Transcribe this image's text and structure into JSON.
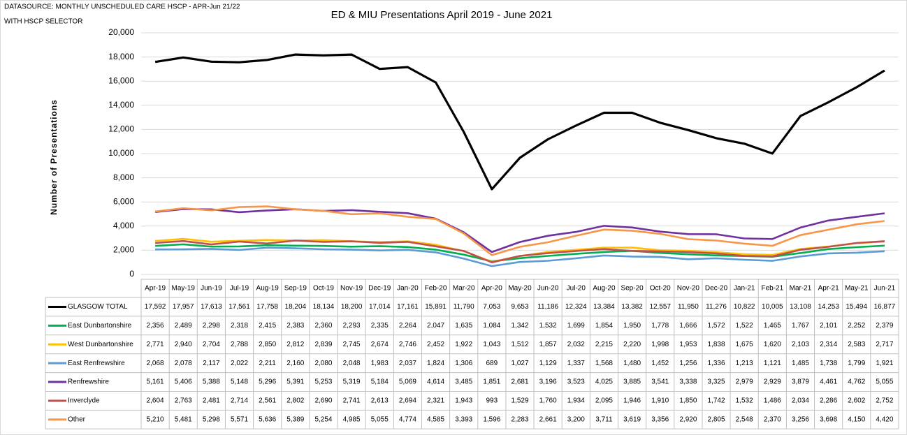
{
  "chart_data": {
    "type": "line",
    "title": "ED & MIU Presentations April 2019 - June 2021",
    "notes": [
      "DATASOURCE: MONTHLY UNSCHEDULED CARE HSCP - APR-Jun 21/22",
      "WITH HSCP SELECTOR"
    ],
    "y_label": "Number of Presentations",
    "categories": [
      "Apr-19",
      "May-19",
      "Jun-19",
      "Jul-19",
      "Aug-19",
      "Sep-19",
      "Oct-19",
      "Nov-19",
      "Dec-19",
      "Jan-20",
      "Feb-20",
      "Mar-20",
      "Apr-20",
      "May-20",
      "Jun-20",
      "Jul-20",
      "Aug-20",
      "Sep-20",
      "Oct-20",
      "Nov-20",
      "Dec-20",
      "Jan-21",
      "Feb-21",
      "Mar-21",
      "Apr-21",
      "May-21",
      "Jun-21"
    ],
    "ylim": [
      0,
      20000
    ],
    "yticks": [
      0,
      {
        "value": 2000,
        "label": "2,000"
      },
      {
        "value": 4000,
        "label": "4,000"
      },
      {
        "value": 6000,
        "label": "6,000"
      },
      {
        "value": 8000,
        "label": "8,000"
      },
      {
        "value": 10000,
        "label": "10,000"
      },
      {
        "value": 12000,
        "label": "12,000"
      },
      {
        "value": 14000,
        "label": "14,000"
      },
      {
        "value": 16000,
        "label": "16,000"
      },
      {
        "value": 18000,
        "label": "18,000"
      },
      {
        "value": 20000,
        "label": "20,000"
      }
    ],
    "grid": true,
    "series": [
      {
        "name": "GLASGOW TOTAL",
        "color": "#000000",
        "values": [
          17592,
          17957,
          17613,
          17561,
          17758,
          18204,
          18134,
          18200,
          17014,
          17161,
          15891,
          11790,
          7053,
          9653,
          11186,
          12324,
          13384,
          13382,
          12557,
          11950,
          11276,
          10822,
          10005,
          13108,
          14253,
          15494,
          16877
        ],
        "value_labels": [
          "17,592",
          "17,957",
          "17,613",
          "17,561",
          "17,758",
          "18,204",
          "18,134",
          "18,200",
          "17,014",
          "17,161",
          "15,891",
          "11,790",
          "7,053",
          "9,653",
          "11,186",
          "12,324",
          "13,384",
          "13,382",
          "12,557",
          "11,950",
          "11,276",
          "10,822",
          "10,005",
          "13,108",
          "14,253",
          "15,494",
          "16,877"
        ]
      },
      {
        "name": "East Dunbartonshire",
        "color": "#00b050",
        "values": [
          2356,
          2489,
          2298,
          2318,
          2415,
          2383,
          2360,
          2293,
          2335,
          2264,
          2047,
          1635,
          1084,
          1342,
          1532,
          1699,
          1854,
          1950,
          1778,
          1666,
          1572,
          1522,
          1465,
          1767,
          2101,
          2252,
          2379
        ],
        "value_labels": [
          "2,356",
          "2,489",
          "2,298",
          "2,318",
          "2,415",
          "2,383",
          "2,360",
          "2,293",
          "2,335",
          "2,264",
          "2,047",
          "1,635",
          "1,084",
          "1,342",
          "1,532",
          "1,699",
          "1,854",
          "1,950",
          "1,778",
          "1,666",
          "1,572",
          "1,522",
          "1,465",
          "1,767",
          "2,101",
          "2,252",
          "2,379"
        ]
      },
      {
        "name": "West Dunbartonshire",
        "color": "#ffc000",
        "values": [
          2771,
          2940,
          2704,
          2788,
          2850,
          2812,
          2839,
          2745,
          2674,
          2746,
          2452,
          1922,
          1043,
          1512,
          1857,
          2032,
          2215,
          2220,
          1998,
          1953,
          1838,
          1675,
          1620,
          2103,
          2314,
          2583,
          2717
        ],
        "value_labels": [
          "2,771",
          "2,940",
          "2,704",
          "2,788",
          "2,850",
          "2,812",
          "2,839",
          "2,745",
          "2,674",
          "2,746",
          "2,452",
          "1,922",
          "1,043",
          "1,512",
          "1,857",
          "2,032",
          "2,215",
          "2,220",
          "1,998",
          "1,953",
          "1,838",
          "1,675",
          "1,620",
          "2,103",
          "2,314",
          "2,583",
          "2,717"
        ]
      },
      {
        "name": "East Renfrewshire",
        "color": "#5b9bd5",
        "values": [
          2068,
          2078,
          2117,
          2022,
          2211,
          2160,
          2080,
          2048,
          1983,
          2037,
          1824,
          1306,
          689,
          1027,
          1129,
          1337,
          1568,
          1480,
          1452,
          1256,
          1336,
          1213,
          1121,
          1485,
          1738,
          1799,
          1921
        ],
        "value_labels": [
          "2,068",
          "2,078",
          "2,117",
          "2,022",
          "2,211",
          "2,160",
          "2,080",
          "2,048",
          "1,983",
          "2,037",
          "1,824",
          "1,306",
          "689",
          "1,027",
          "1,129",
          "1,337",
          "1,568",
          "1,480",
          "1,452",
          "1,256",
          "1,336",
          "1,213",
          "1,121",
          "1,485",
          "1,738",
          "1,799",
          "1,921"
        ]
      },
      {
        "name": "Renfrewshire",
        "color": "#7030a0",
        "values": [
          5161,
          5406,
          5388,
          5148,
          5296,
          5391,
          5253,
          5319,
          5184,
          5069,
          4614,
          3485,
          1851,
          2681,
          3196,
          3523,
          4025,
          3885,
          3541,
          3338,
          3325,
          2979,
          2929,
          3879,
          4461,
          4762,
          5055
        ],
        "value_labels": [
          "5,161",
          "5,406",
          "5,388",
          "5,148",
          "5,296",
          "5,391",
          "5,253",
          "5,319",
          "5,184",
          "5,069",
          "4,614",
          "3,485",
          "1,851",
          "2,681",
          "3,196",
          "3,523",
          "4,025",
          "3,885",
          "3,541",
          "3,338",
          "3,325",
          "2,979",
          "2,929",
          "3,879",
          "4,461",
          "4,762",
          "5,055"
        ]
      },
      {
        "name": "Inverclyde",
        "color": "#c0504d",
        "values": [
          2604,
          2763,
          2481,
          2714,
          2561,
          2802,
          2690,
          2741,
          2613,
          2694,
          2321,
          1943,
          993,
          1529,
          1760,
          1934,
          2095,
          1946,
          1910,
          1850,
          1742,
          1532,
          1486,
          2034,
          2286,
          2602,
          2752
        ],
        "value_labels": [
          "2,604",
          "2,763",
          "2,481",
          "2,714",
          "2,561",
          "2,802",
          "2,690",
          "2,741",
          "2,613",
          "2,694",
          "2,321",
          "1,943",
          "993",
          "1,529",
          "1,760",
          "1,934",
          "2,095",
          "1,946",
          "1,910",
          "1,850",
          "1,742",
          "1,532",
          "1,486",
          "2,034",
          "2,286",
          "2,602",
          "2,752"
        ]
      },
      {
        "name": "Other",
        "color": "#f79646",
        "values": [
          5210,
          5481,
          5298,
          5571,
          5636,
          5389,
          5254,
          4985,
          5055,
          4774,
          4585,
          3393,
          1596,
          2283,
          2661,
          3200,
          3711,
          3619,
          3356,
          2920,
          2805,
          2548,
          2370,
          3256,
          3698,
          4150,
          4420
        ],
        "value_labels": [
          "5,210",
          "5,481",
          "5,298",
          "5,571",
          "5,636",
          "5,389",
          "5,254",
          "4,985",
          "5,055",
          "4,774",
          "4,585",
          "3,393",
          "1,596",
          "2,283",
          "2,661",
          "3,200",
          "3,711",
          "3,619",
          "3,356",
          "2,920",
          "2,805",
          "2,548",
          "2,370",
          "3,256",
          "3,698",
          "4,150",
          "4,420"
        ]
      }
    ]
  }
}
